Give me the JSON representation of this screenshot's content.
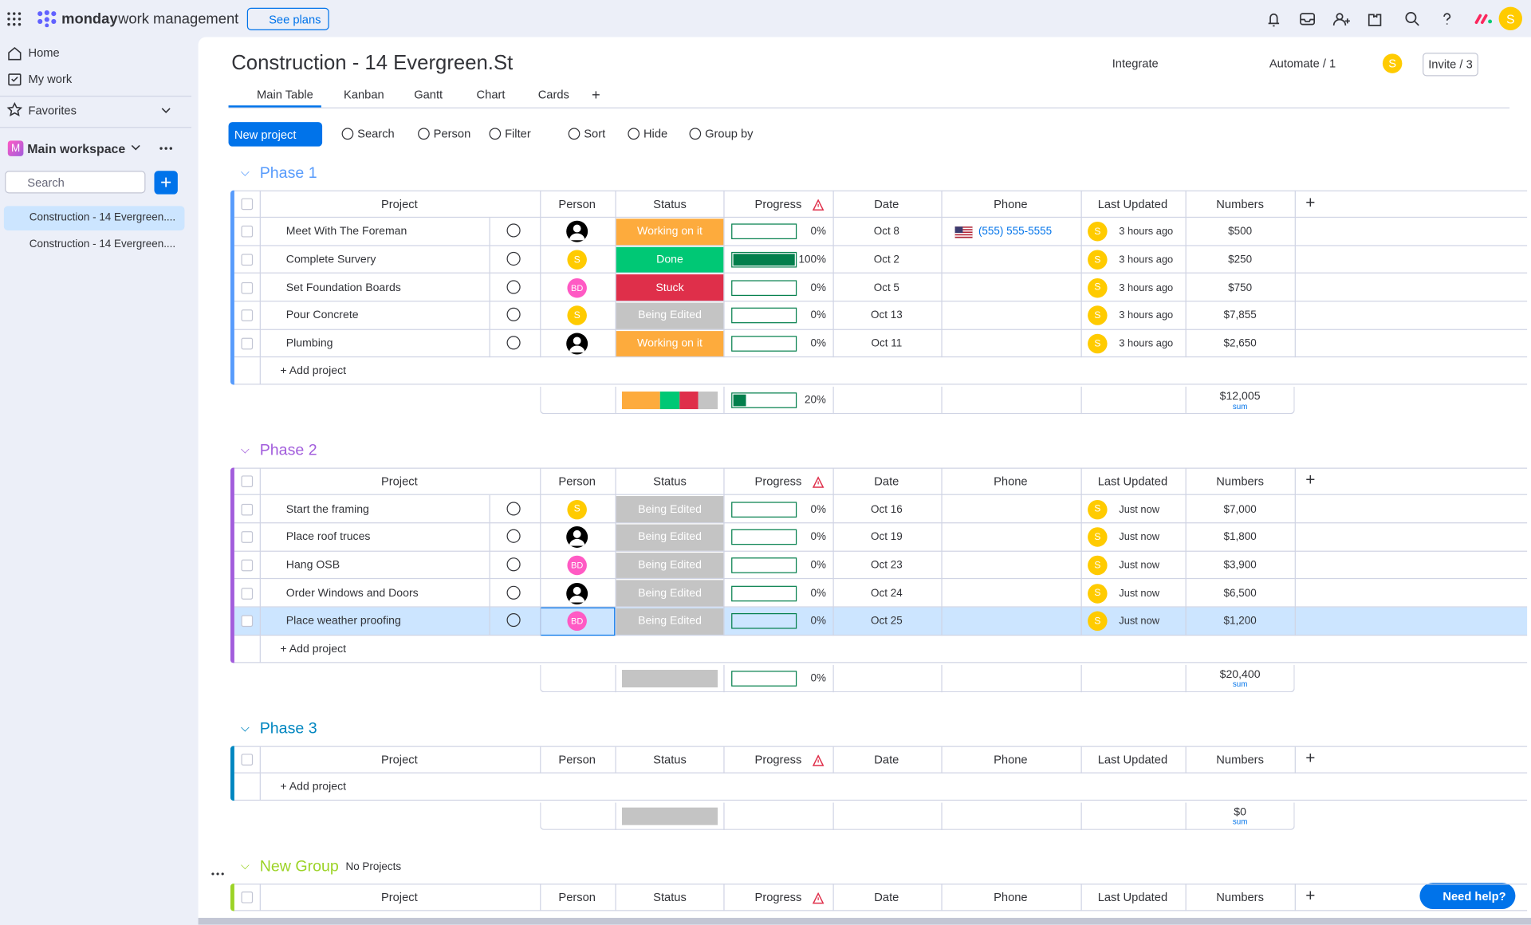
{
  "topbar": {
    "brand": "monday",
    "product": "work management",
    "see_plans": "See plans",
    "avatar": "S"
  },
  "sidebar": {
    "home": "Home",
    "my_work": "My work",
    "favorites": "Favorites",
    "workspace_icon": "M",
    "workspace": "Main workspace",
    "search": "Search",
    "boards": [
      "Construction - 14 Evergreen....",
      "Construction - 14 Evergreen...."
    ]
  },
  "board": {
    "title": "Construction - 14 Evergreen.St",
    "integrate": "Integrate",
    "automate": "Automate / 1",
    "avatar": "S",
    "invite": "Invite / 3",
    "tabs": [
      "Main Table",
      "Kanban",
      "Gantt",
      "Chart",
      "Cards"
    ]
  },
  "toolbar": {
    "new_project": "New project",
    "search": "Search",
    "person": "Person",
    "filter": "Filter",
    "sort": "Sort",
    "hide": "Hide",
    "group_by": "Group by"
  },
  "columns": [
    "Project",
    "Person",
    "Status",
    "Progress",
    "Date",
    "Phone",
    "Last Updated",
    "Numbers"
  ],
  "status_colors": {
    "Working on it": "#fdab3d",
    "Done": "#00c875",
    "Stuck": "#df2f4a",
    "Being Edited": "#c4c4c4"
  },
  "groups": [
    {
      "title": "Phase 1",
      "color": "#579bfc",
      "add": "+ Add project",
      "rows": [
        {
          "project": "Meet With The Foreman",
          "person": null,
          "status": "Working on it",
          "progress": "0%",
          "date": "Oct 8",
          "phone": "(555) 555-5555",
          "updated_by": "S",
          "updated": "3 hours ago",
          "number": "$500"
        },
        {
          "project": "Complete Survery",
          "person": "S",
          "status": "Done",
          "progress": "100%",
          "date": "Oct 2",
          "updated_by": "S",
          "updated": "3 hours ago",
          "number": "$250"
        },
        {
          "project": "Set Foundation Boards",
          "person": "BD",
          "status": "Stuck",
          "progress": "0%",
          "date": "Oct 5",
          "updated_by": "S",
          "updated": "3 hours ago",
          "number": "$750"
        },
        {
          "project": "Pour Concrete",
          "person": "S",
          "status": "Being Edited",
          "progress": "0%",
          "date": "Oct 13",
          "updated_by": "S",
          "updated": "3 hours ago",
          "number": "$7,855"
        },
        {
          "project": "Plumbing",
          "person": null,
          "status": "Working on it",
          "progress": "0%",
          "date": "Oct 11",
          "updated_by": "S",
          "updated": "3 hours ago",
          "number": "$2,650"
        }
      ],
      "summary": {
        "progress": "20%",
        "sum": "$12,005",
        "sum_label": "sum"
      }
    },
    {
      "title": "Phase 2",
      "color": "#a25ddc",
      "add": "+ Add project",
      "rows": [
        {
          "project": "Start the framing",
          "person": "S",
          "status": "Being Edited",
          "progress": "0%",
          "date": "Oct 16",
          "updated_by": "S",
          "updated": "Just now",
          "number": "$7,000"
        },
        {
          "project": "Place roof truces",
          "person": null,
          "status": "Being Edited",
          "progress": "0%",
          "date": "Oct 19",
          "updated_by": "S",
          "updated": "Just now",
          "number": "$1,800"
        },
        {
          "project": "Hang OSB",
          "person": "BD",
          "status": "Being Edited",
          "progress": "0%",
          "date": "Oct 23",
          "updated_by": "S",
          "updated": "Just now",
          "number": "$3,900"
        },
        {
          "project": "Order Windows and Doors",
          "person": null,
          "status": "Being Edited",
          "progress": "0%",
          "date": "Oct 24",
          "updated_by": "S",
          "updated": "Just now",
          "number": "$6,500"
        },
        {
          "project": "Place weather proofing",
          "person": "BD",
          "status": "Being Edited",
          "progress": "0%",
          "date": "Oct 25",
          "updated_by": "S",
          "updated": "Just now",
          "number": "$1,200",
          "selected": true
        }
      ],
      "summary": {
        "progress": "0%",
        "sum": "$20,400",
        "sum_label": "sum"
      }
    },
    {
      "title": "Phase 3",
      "color": "#0086c0",
      "add": "+ Add project",
      "rows": [],
      "summary": {
        "sum": "$0",
        "sum_label": "sum"
      }
    },
    {
      "title": "New Group",
      "color": "#9cd326",
      "note": "No Projects",
      "rows": []
    }
  ],
  "help": "Need help?"
}
